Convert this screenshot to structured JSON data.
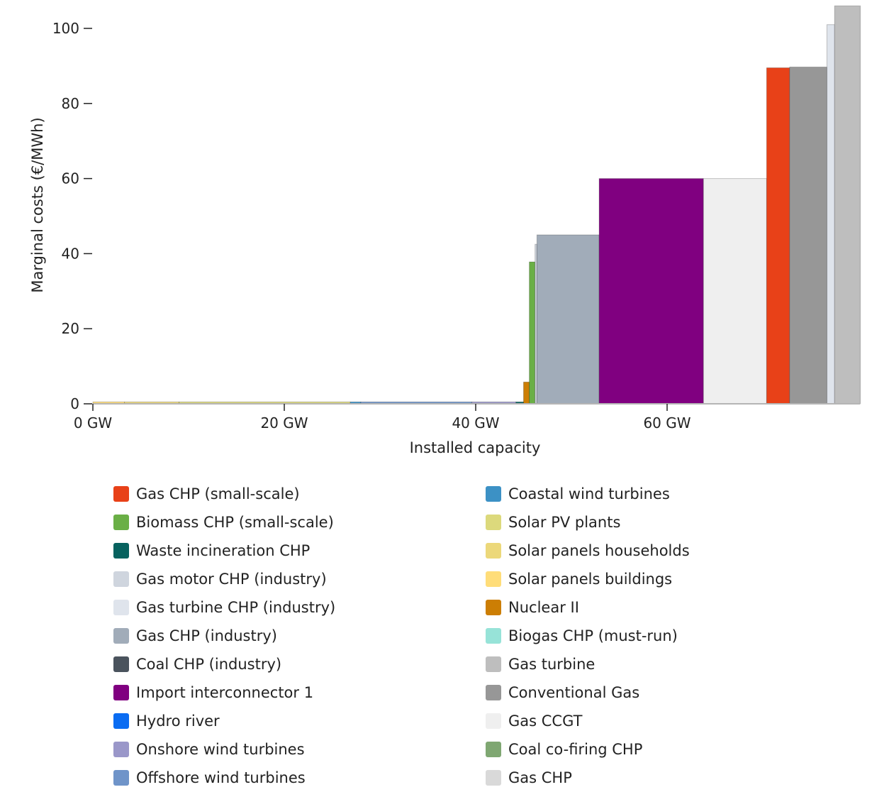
{
  "chart_data": {
    "type": "bar",
    "subtype": "merit-order",
    "xlabel": "Installed capacity",
    "ylabel": "Marginal costs (€/MWh)",
    "x_ticks": [
      {
        "value": 0,
        "label": "0 GW"
      },
      {
        "value": 20,
        "label": "20 GW"
      },
      {
        "value": 40,
        "label": "40 GW"
      },
      {
        "value": 60,
        "label": "60 GW"
      }
    ],
    "y_ticks": [
      {
        "value": 0,
        "label": "0"
      },
      {
        "value": 20,
        "label": "20"
      },
      {
        "value": 40,
        "label": "40"
      },
      {
        "value": 60,
        "label": "60"
      },
      {
        "value": 80,
        "label": "80"
      },
      {
        "value": 100,
        "label": "100"
      }
    ],
    "xlim": [
      0,
      80
    ],
    "ylim": [
      0,
      106
    ],
    "grid": false,
    "legend_position": "bottom",
    "steps": [
      {
        "series": "Solar panels buildings",
        "x0": 0,
        "x1": 3.3,
        "y": 0.5,
        "color": "#ffdd79"
      },
      {
        "series": "Solar panels households",
        "x0": 3.3,
        "x1": 9.0,
        "y": 0.5,
        "color": "#ecd87a"
      },
      {
        "series": "Solar PV plants",
        "x0": 9.0,
        "x1": 26.9,
        "y": 0.5,
        "color": "#dcd97c"
      },
      {
        "series": "Coastal wind turbines",
        "x0": 26.9,
        "x1": 28.0,
        "y": 0.5,
        "color": "#3c91c5"
      },
      {
        "series": "Offshore wind turbines",
        "x0": 28.0,
        "x1": 39.6,
        "y": 0.5,
        "color": "#6f94c9"
      },
      {
        "series": "Onshore wind turbines",
        "x0": 39.6,
        "x1": 44.2,
        "y": 0.5,
        "color": "#9a97c9"
      },
      {
        "series": "Waste incineration CHP",
        "x0": 44.2,
        "x1": 45.0,
        "y": 0.5,
        "color": "#07625f"
      },
      {
        "series": "Nuclear II",
        "x0": 45.0,
        "x1": 45.6,
        "y": 5.8,
        "color": "#cc7e04"
      },
      {
        "series": "Biomass CHP (small-scale)",
        "x0": 45.6,
        "x1": 46.2,
        "y": 37.8,
        "color": "#6aaf46"
      },
      {
        "series": "Gas motor CHP (industry)",
        "x0": 46.2,
        "x1": 46.4,
        "y": 42.5,
        "color": "#cfd5de"
      },
      {
        "series": "Gas CHP (industry)",
        "x0": 46.4,
        "x1": 52.9,
        "y": 45.0,
        "color": "#a1acb9"
      },
      {
        "series": "Import interconnector 1",
        "x0": 52.9,
        "x1": 63.8,
        "y": 60.0,
        "color": "#800080"
      },
      {
        "series": "Gas CCGT",
        "x0": 63.8,
        "x1": 70.4,
        "y": 60.0,
        "color": "#efefef"
      },
      {
        "series": "Gas CHP (small-scale)",
        "x0": 70.4,
        "x1": 72.8,
        "y": 89.5,
        "color": "#e84118"
      },
      {
        "series": "Conventional Gas",
        "x0": 72.8,
        "x1": 76.7,
        "y": 89.7,
        "color": "#979797"
      },
      {
        "series": "Gas turbine CHP (industry)",
        "x0": 76.7,
        "x1": 77.5,
        "y": 101.0,
        "color": "#dfe4ec"
      },
      {
        "series": "Gas turbine",
        "x0": 77.5,
        "x1": 80.2,
        "y": 106.0,
        "color": "#bebebe"
      }
    ]
  },
  "legend": {
    "left": [
      {
        "label": "Gas CHP (small-scale)",
        "color": "#e84118"
      },
      {
        "label": "Biomass CHP (small-scale)",
        "color": "#6aaf46"
      },
      {
        "label": "Waste incineration CHP",
        "color": "#07625f"
      },
      {
        "label": "Gas motor CHP (industry)",
        "color": "#cfd5de"
      },
      {
        "label": "Gas turbine CHP (industry)",
        "color": "#dfe4ec"
      },
      {
        "label": "Gas CHP (industry)",
        "color": "#a1acb9"
      },
      {
        "label": "Coal CHP (industry)",
        "color": "#4a535d"
      },
      {
        "label": "Import interconnector 1",
        "color": "#800080"
      },
      {
        "label": "Hydro river",
        "color": "#0a6cf2"
      },
      {
        "label": "Onshore wind turbines",
        "color": "#9a97c9"
      },
      {
        "label": "Offshore wind turbines",
        "color": "#6f94c9"
      }
    ],
    "right": [
      {
        "label": "Coastal wind turbines",
        "color": "#3c91c5"
      },
      {
        "label": "Solar PV plants",
        "color": "#dcd97c"
      },
      {
        "label": "Solar panels households",
        "color": "#ecd87a"
      },
      {
        "label": "Solar panels buildings",
        "color": "#ffdd79"
      },
      {
        "label": "Nuclear II",
        "color": "#cc7e04"
      },
      {
        "label": "Biogas CHP (must-run)",
        "color": "#97e3d8"
      },
      {
        "label": "Gas turbine",
        "color": "#bebebe"
      },
      {
        "label": "Conventional Gas",
        "color": "#979797"
      },
      {
        "label": "Gas CCGT",
        "color": "#efefef"
      },
      {
        "label": "Coal co-firing CHP",
        "color": "#7fa772"
      },
      {
        "label": "Gas CHP",
        "color": "#d9d9d9"
      }
    ]
  }
}
